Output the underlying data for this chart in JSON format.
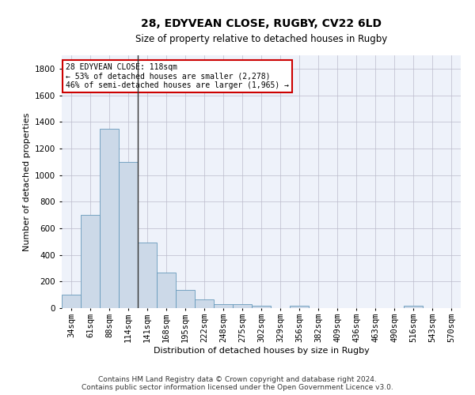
{
  "title1": "28, EDYVEAN CLOSE, RUGBY, CV22 6LD",
  "title2": "Size of property relative to detached houses in Rugby",
  "xlabel": "Distribution of detached houses by size in Rugby",
  "ylabel": "Number of detached properties",
  "bar_labels": [
    "34sqm",
    "61sqm",
    "88sqm",
    "114sqm",
    "141sqm",
    "168sqm",
    "195sqm",
    "222sqm",
    "248sqm",
    "275sqm",
    "302sqm",
    "329sqm",
    "356sqm",
    "382sqm",
    "409sqm",
    "436sqm",
    "463sqm",
    "490sqm",
    "516sqm",
    "543sqm",
    "570sqm"
  ],
  "bar_values": [
    100,
    700,
    1350,
    1100,
    490,
    270,
    135,
    65,
    30,
    30,
    15,
    0,
    20,
    0,
    0,
    0,
    0,
    0,
    20,
    0,
    0
  ],
  "bar_color": "#ccd9e8",
  "bar_edge_color": "#6699bb",
  "vline_x": 3.5,
  "vline_color": "#333333",
  "annotation_line1": "28 EDYVEAN CLOSE: 118sqm",
  "annotation_line2": "← 53% of detached houses are smaller (2,278)",
  "annotation_line3": "46% of semi-detached houses are larger (1,965) →",
  "annotation_box_color": "#cc0000",
  "ylim": [
    0,
    1900
  ],
  "yticks": [
    0,
    200,
    400,
    600,
    800,
    1000,
    1200,
    1400,
    1600,
    1800
  ],
  "grid_color": "#bbbbcc",
  "bg_color": "#eef2fa",
  "footer": "Contains HM Land Registry data © Crown copyright and database right 2024.\nContains public sector information licensed under the Open Government Licence v3.0.",
  "title1_fontsize": 10,
  "title2_fontsize": 8.5,
  "xlabel_fontsize": 8,
  "ylabel_fontsize": 8,
  "tick_fontsize": 7.5,
  "footer_fontsize": 6.5
}
